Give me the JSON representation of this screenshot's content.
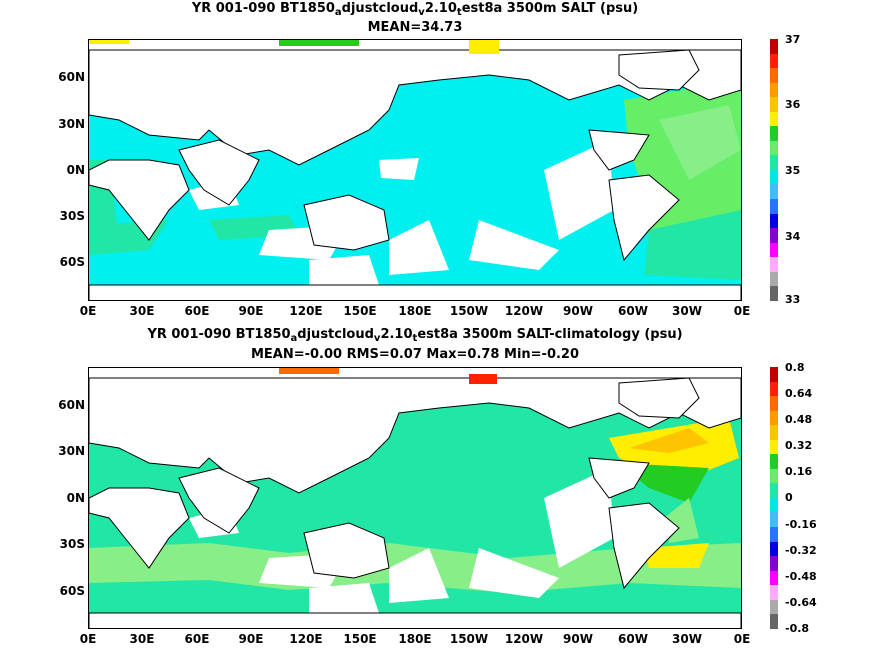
{
  "panels": [
    {
      "title_parts": [
        "YR 001-090 BT1850",
        "a",
        "djustcloud",
        "v",
        "2.10",
        "t",
        "est8a 3500m SALT (psu)"
      ],
      "subtitle": "MEAN=34.73",
      "colorbar": {
        "labels": [
          "37",
          "36",
          "35",
          "34",
          "33"
        ],
        "colors": [
          "#c00000",
          "#ff2000",
          "#ff6a00",
          "#ff9a00",
          "#ffc400",
          "#ffee00",
          "#22cc22",
          "#66ee66",
          "#22e6a6",
          "#00e6e6",
          "#44bbff",
          "#2277ff",
          "#0000dd",
          "#8800cc",
          "#ff00ff",
          "#ffaaff",
          "#aaaaaa",
          "#666666"
        ]
      },
      "fields": {
        "ocean_fill": "#00f0f0",
        "north_atlantic": "#66ee66",
        "deep_ocean_patch": "#22e6a6"
      }
    },
    {
      "title_parts": [
        "YR 001-090 BT1850",
        "a",
        "djustcloud",
        "v",
        "2.10",
        "t",
        "est8a 3500m SALT-climatology (psu)"
      ],
      "subtitle": "MEAN=-0.00   RMS=0.07   Max=0.78   Min=-0.20",
      "colorbar": {
        "labels": [
          "0.8",
          "0.64",
          "0.48",
          "0.32",
          "0.16",
          "0",
          "-0.16",
          "-0.32",
          "-0.48",
          "-0.64",
          "-0.8"
        ],
        "colors": [
          "#c00000",
          "#ff2000",
          "#ff6a00",
          "#ff9a00",
          "#ffc400",
          "#ffee00",
          "#22cc22",
          "#66ee66",
          "#22e6a6",
          "#00e6e6",
          "#44bbff",
          "#2277ff",
          "#0000dd",
          "#8800cc",
          "#ff00ff",
          "#ffaaff",
          "#aaaaaa",
          "#666666"
        ]
      },
      "fields": {
        "ocean_fill": "#22e6a6",
        "southern_band": "#88ee88",
        "north_atlantic": "#ffee00"
      }
    }
  ],
  "latitude_labels": [
    "60N",
    "30N",
    "0N",
    "30S",
    "60S"
  ],
  "longitude_labels": [
    "0E",
    "30E",
    "60E",
    "90E",
    "120E",
    "150E",
    "180E",
    "150W",
    "120W",
    "90W",
    "60W",
    "30W",
    "0E"
  ]
}
